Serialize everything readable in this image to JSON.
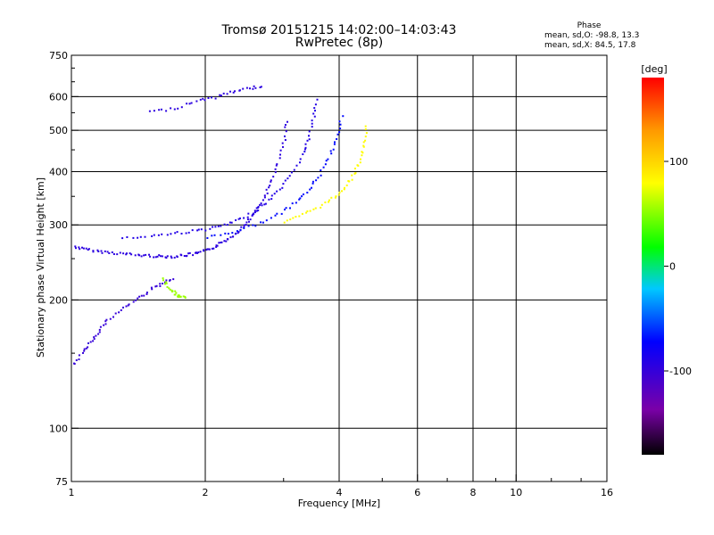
{
  "chart_data": {
    "type": "scatter",
    "title": "Tromsø 20151215 14:02:00–14:03:43",
    "subtitle": "RwPretec (8p)",
    "xlabel": "Frequency [MHz]",
    "ylabel": "Stationary phase Virtual Height [km]",
    "x_scale": "log",
    "y_scale": "log",
    "xlim": [
      1,
      16
    ],
    "ylim": [
      75,
      750
    ],
    "x_ticks": [
      "1",
      "2",
      "4",
      "6",
      "8",
      "10",
      "16"
    ],
    "y_ticks": [
      "75",
      "100",
      "200",
      "300",
      "400",
      "500",
      "600",
      "750"
    ],
    "x_gridlines": [
      2,
      4,
      6,
      8,
      10
    ],
    "y_gridlines": [
      100,
      200,
      300,
      400,
      500,
      600
    ],
    "grid": true,
    "phase_info": {
      "header": "Phase",
      "line_o": "mean, sd,O: -98.8, 13.3",
      "line_x": "mean, sd,X:  84.5, 17.8"
    },
    "colorbar": {
      "label": "[deg]",
      "range": [
        -180,
        180
      ],
      "ticks": [
        "100",
        "0",
        "-100"
      ],
      "tick_values": [
        100,
        0,
        -100
      ],
      "colors": [
        "#000000",
        "#7a00a8",
        "#0000ff",
        "#00c8ff",
        "#00ff00",
        "#ffff00",
        "#ff9900",
        "#ff0000"
      ]
    },
    "traces": [
      {
        "name": "",
        "phase": -95,
        "points": [
          [
            1.0,
            270
          ],
          [
            1.05,
            265
          ],
          [
            1.12,
            262
          ],
          [
            1.2,
            260
          ],
          [
            1.3,
            258
          ],
          [
            1.4,
            256
          ],
          [
            1.5,
            255
          ],
          [
            1.6,
            254
          ],
          [
            1.7,
            254
          ],
          [
            1.8,
            256
          ],
          [
            1.9,
            258
          ],
          [
            2.0,
            262
          ],
          [
            2.1,
            268
          ],
          [
            2.2,
            276
          ],
          [
            2.3,
            285
          ],
          [
            2.4,
            296
          ],
          [
            2.5,
            310
          ],
          [
            2.6,
            326
          ],
          [
            2.7,
            348
          ],
          [
            2.8,
            378
          ],
          [
            2.9,
            420
          ],
          [
            3.0,
            480
          ],
          [
            3.05,
            540
          ]
        ]
      },
      {
        "name": "",
        "phase": -90,
        "points": [
          [
            1.3,
            280
          ],
          [
            1.5,
            284
          ],
          [
            1.7,
            288
          ],
          [
            1.9,
            292
          ],
          [
            2.1,
            297
          ],
          [
            2.3,
            305
          ],
          [
            2.5,
            318
          ],
          [
            2.7,
            336
          ],
          [
            2.9,
            360
          ],
          [
            3.1,
            392
          ],
          [
            3.3,
            440
          ],
          [
            3.4,
            480
          ],
          [
            3.5,
            540
          ],
          [
            3.55,
            600
          ]
        ]
      },
      {
        "name": "",
        "phase": -70,
        "points": [
          [
            2.0,
            282
          ],
          [
            2.3,
            290
          ],
          [
            2.6,
            302
          ],
          [
            2.9,
            318
          ],
          [
            3.2,
            340
          ],
          [
            3.4,
            364
          ],
          [
            3.6,
            396
          ],
          [
            3.8,
            440
          ],
          [
            3.95,
            490
          ],
          [
            4.05,
            550
          ]
        ]
      },
      {
        "name": "",
        "phase": 80,
        "points": [
          [
            3.0,
            305
          ],
          [
            3.3,
            318
          ],
          [
            3.6,
            333
          ],
          [
            3.9,
            350
          ],
          [
            4.1,
            370
          ],
          [
            4.3,
            396
          ],
          [
            4.45,
            430
          ],
          [
            4.55,
            470
          ],
          [
            4.6,
            520
          ]
        ]
      },
      {
        "name": "",
        "phase": -100,
        "points": [
          [
            1.0,
            140
          ],
          [
            1.05,
            150
          ],
          [
            1.1,
            160
          ],
          [
            1.15,
            170
          ],
          [
            1.2,
            180
          ],
          [
            1.3,
            192
          ],
          [
            1.4,
            202
          ],
          [
            1.5,
            212
          ],
          [
            1.6,
            220
          ],
          [
            1.7,
            226
          ]
        ]
      },
      {
        "name": "",
        "phase": -95,
        "points": [
          [
            1.5,
            555
          ],
          [
            1.7,
            565
          ],
          [
            1.9,
            590
          ],
          [
            2.1,
            600
          ],
          [
            2.3,
            620
          ],
          [
            2.5,
            630
          ],
          [
            2.7,
            640
          ]
        ]
      },
      {
        "name": "",
        "phase": 55,
        "points": [
          [
            1.6,
            225
          ],
          [
            1.65,
            215
          ],
          [
            1.7,
            208
          ],
          [
            1.75,
            205
          ],
          [
            1.8,
            202
          ]
        ]
      }
    ]
  }
}
